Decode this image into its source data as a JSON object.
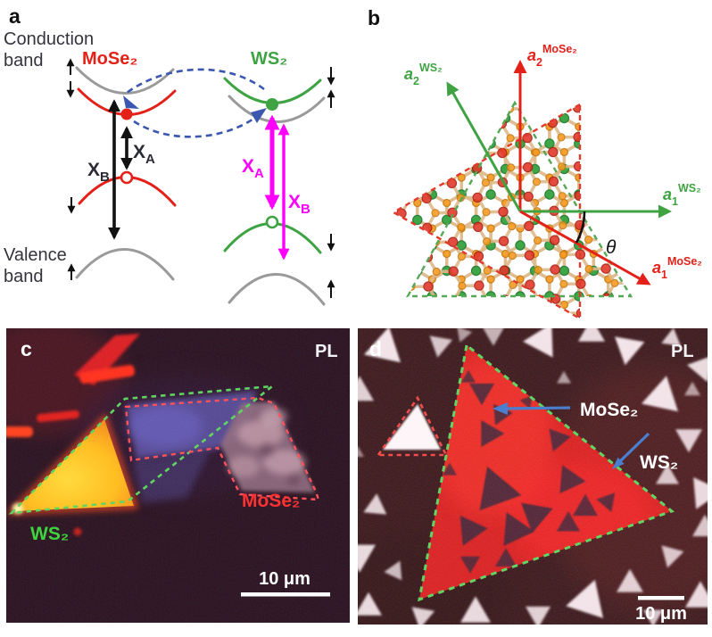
{
  "colors": {
    "mose2_red": "#e32119",
    "ws2_green": "#3fa344",
    "exciton_magenta": "#ff00ff",
    "transfer_blue": "#3b57b0",
    "band_gray": "#9a9a9a",
    "lattice_bond_tan": "#dfba8c",
    "chalcogen_orange": "#f59b24",
    "annotation_arrow_blue": "#4a7fd0",
    "pl_white": "#ffffff"
  },
  "panel_a": {
    "label": "a",
    "conduction_line1": "Conduction",
    "conduction_line2": "band",
    "valence_line1": "Valence",
    "valence_line2": "band",
    "mose2_label": "MoSe₂",
    "ws2_label": "WS₂",
    "exciton_a": {
      "base": "X",
      "sub": "A"
    },
    "exciton_b": {
      "base": "X",
      "sub": "B"
    }
  },
  "panel_b": {
    "label": "b",
    "theta": "θ",
    "a1_ws2": {
      "base": "a",
      "sub": "1",
      "sup": "WS₂"
    },
    "a2_ws2": {
      "base": "a",
      "sub": "2",
      "sup": "WS₂"
    },
    "a1_mose2": {
      "base": "a",
      "sub": "1",
      "sup": "MoSe₂"
    },
    "a2_mose2": {
      "base": "a",
      "sub": "2",
      "sup": "MoSe₂"
    }
  },
  "panel_c": {
    "label": "c",
    "technique": "PL",
    "ws2_label": "WS₂",
    "mose2_label": "MoSe₂",
    "scale_bar": "10 μm"
  },
  "panel_d": {
    "label": "d",
    "technique": "PL",
    "ws2_label": "WS₂",
    "mose2_label": "MoSe₂",
    "scale_bar": "10 μm"
  }
}
